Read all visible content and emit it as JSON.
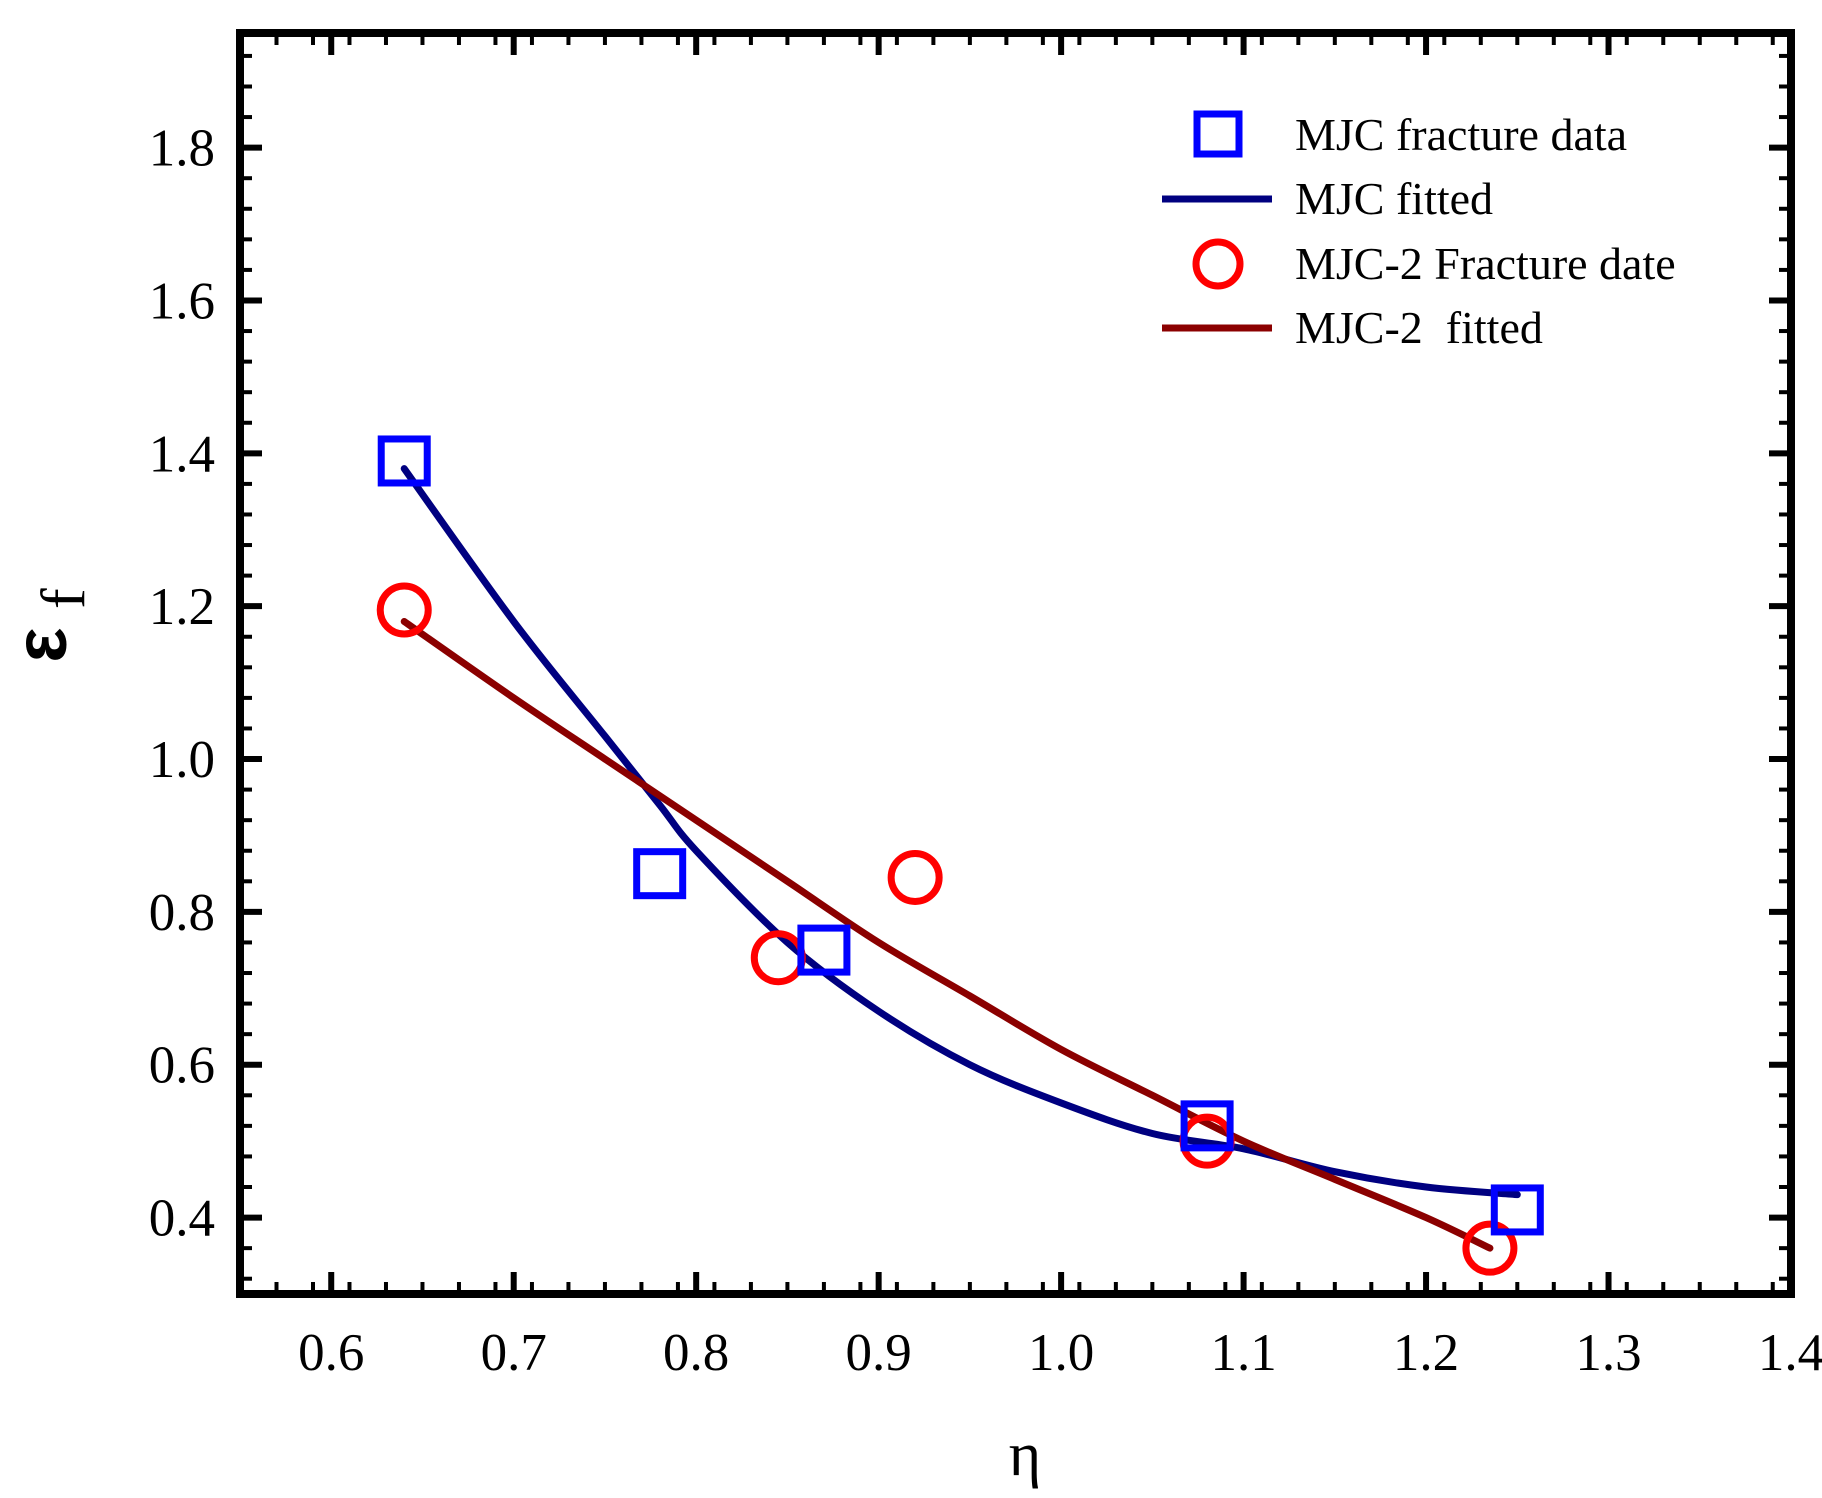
{
  "chart_data": {
    "type": "scatter",
    "title": "",
    "xlabel": "η",
    "ylabel_main": "ε",
    "ylabel_sub": "f",
    "xlim": [
      0.55,
      1.4
    ],
    "ylim": [
      0.3,
      1.95
    ],
    "xticks": [
      0.6,
      0.7,
      0.8,
      0.9,
      1.0,
      1.1,
      1.2,
      1.3,
      1.4
    ],
    "xtick_labels": [
      "0.6",
      "0.7",
      "0.8",
      "0.9",
      "1.0",
      "1.1",
      "1.2",
      "1.3",
      "1.4"
    ],
    "yticks": [
      0.4,
      0.6,
      0.8,
      1.0,
      1.2,
      1.4,
      1.6,
      1.8
    ],
    "ytick_labels": [
      "0.4",
      "0.6",
      "0.8",
      "1.0",
      "1.2",
      "1.4",
      "1.6",
      "1.8"
    ],
    "legend_position": "top-right",
    "series": [
      {
        "name": "MJC fracture data",
        "kind": "scatter",
        "marker": "square",
        "color": "#0000ff",
        "x": [
          0.64,
          0.78,
          0.87,
          1.08,
          1.25
        ],
        "y": [
          1.39,
          0.85,
          0.75,
          0.52,
          0.41
        ]
      },
      {
        "name": "MJC fitted",
        "kind": "line",
        "color": "#000080",
        "x": [
          0.64,
          0.7,
          0.75,
          0.78,
          0.8,
          0.85,
          0.9,
          0.95,
          1.0,
          1.05,
          1.1,
          1.15,
          1.2,
          1.25
        ],
        "y": [
          1.38,
          1.18,
          1.03,
          0.94,
          0.88,
          0.76,
          0.67,
          0.6,
          0.55,
          0.51,
          0.49,
          0.46,
          0.44,
          0.43
        ]
      },
      {
        "name": "MJC-2 Fracture date",
        "kind": "scatter",
        "marker": "circle",
        "color": "#ff0000",
        "x": [
          0.64,
          0.845,
          0.92,
          1.08,
          1.235
        ],
        "y": [
          1.195,
          0.74,
          0.845,
          0.5,
          0.36
        ]
      },
      {
        "name": "MJC-2  fitted",
        "kind": "line",
        "color": "#8b0000",
        "x": [
          0.64,
          0.7,
          0.75,
          0.8,
          0.85,
          0.9,
          0.95,
          1.0,
          1.05,
          1.1,
          1.15,
          1.2,
          1.235
        ],
        "y": [
          1.18,
          1.08,
          1.0,
          0.92,
          0.84,
          0.76,
          0.69,
          0.62,
          0.56,
          0.5,
          0.45,
          0.4,
          0.36
        ]
      }
    ]
  }
}
